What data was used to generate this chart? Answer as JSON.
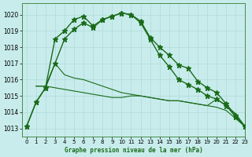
{
  "title": "Graphe pression niveau de la mer (hPa)",
  "bg_color": "#c8ecec",
  "grid_color": "#b0d8d8",
  "line_color": "#1a6b1a",
  "xlim": [
    -0.5,
    23
  ],
  "ylim": [
    1012.5,
    1020.7
  ],
  "yticks": [
    1013,
    1014,
    1015,
    1016,
    1017,
    1018,
    1019,
    1020
  ],
  "xticks": [
    0,
    1,
    2,
    3,
    4,
    5,
    6,
    7,
    8,
    9,
    10,
    11,
    12,
    13,
    14,
    15,
    16,
    17,
    18,
    19,
    20,
    21,
    22,
    23
  ],
  "line1_x": [
    0,
    1,
    2,
    3,
    4,
    5,
    6,
    7,
    8,
    9,
    10,
    11,
    12,
    13,
    14,
    15,
    16,
    17,
    18,
    19,
    20,
    21,
    22,
    23
  ],
  "line1_y": [
    1013.1,
    1014.6,
    1015.5,
    1018.5,
    1019.0,
    1019.7,
    1019.9,
    1019.3,
    1019.7,
    1019.9,
    1020.1,
    1020.0,
    1019.6,
    1018.6,
    1018.0,
    1017.5,
    1016.9,
    1016.7,
    1015.9,
    1015.5,
    1015.2,
    1014.5,
    1013.8,
    1013.1
  ],
  "line2_x": [
    0,
    1,
    2,
    3,
    4,
    5,
    6,
    7,
    8,
    9,
    10,
    11,
    12,
    13,
    14,
    15,
    16,
    17,
    18,
    19,
    20,
    21,
    22,
    23
  ],
  "line2_y": [
    1013.1,
    1014.6,
    1015.5,
    1017.0,
    1018.5,
    1019.1,
    1019.5,
    1019.2,
    1019.7,
    1019.9,
    1020.1,
    1020.0,
    1019.5,
    1018.5,
    1017.5,
    1016.8,
    1016.0,
    1015.7,
    1015.4,
    1015.0,
    1014.8,
    1014.4,
    1013.7,
    1013.1
  ],
  "line3_x": [
    1,
    2,
    3,
    4,
    5,
    6,
    7,
    8,
    9,
    10,
    11,
    12,
    13,
    14,
    15,
    16,
    17,
    18,
    19,
    20,
    21,
    22,
    23
  ],
  "line3_y": [
    1015.6,
    1015.6,
    1017.0,
    1016.3,
    1016.1,
    1016.0,
    1015.8,
    1015.6,
    1015.4,
    1015.2,
    1015.1,
    1015.0,
    1014.9,
    1014.8,
    1014.7,
    1014.7,
    1014.6,
    1014.5,
    1014.4,
    1014.8,
    1014.4,
    1013.9,
    1013.1
  ],
  "line4_x": [
    1,
    2,
    3,
    4,
    5,
    6,
    7,
    8,
    9,
    10,
    11,
    12,
    13,
    14,
    15,
    16,
    17,
    18,
    19,
    20,
    21,
    22,
    23
  ],
  "line4_y": [
    1015.6,
    1015.6,
    1015.5,
    1015.4,
    1015.3,
    1015.2,
    1015.1,
    1015.0,
    1014.9,
    1014.9,
    1015.0,
    1015.0,
    1014.9,
    1014.8,
    1014.7,
    1014.7,
    1014.6,
    1014.5,
    1014.4,
    1014.3,
    1014.1,
    1013.6,
    1013.1
  ]
}
